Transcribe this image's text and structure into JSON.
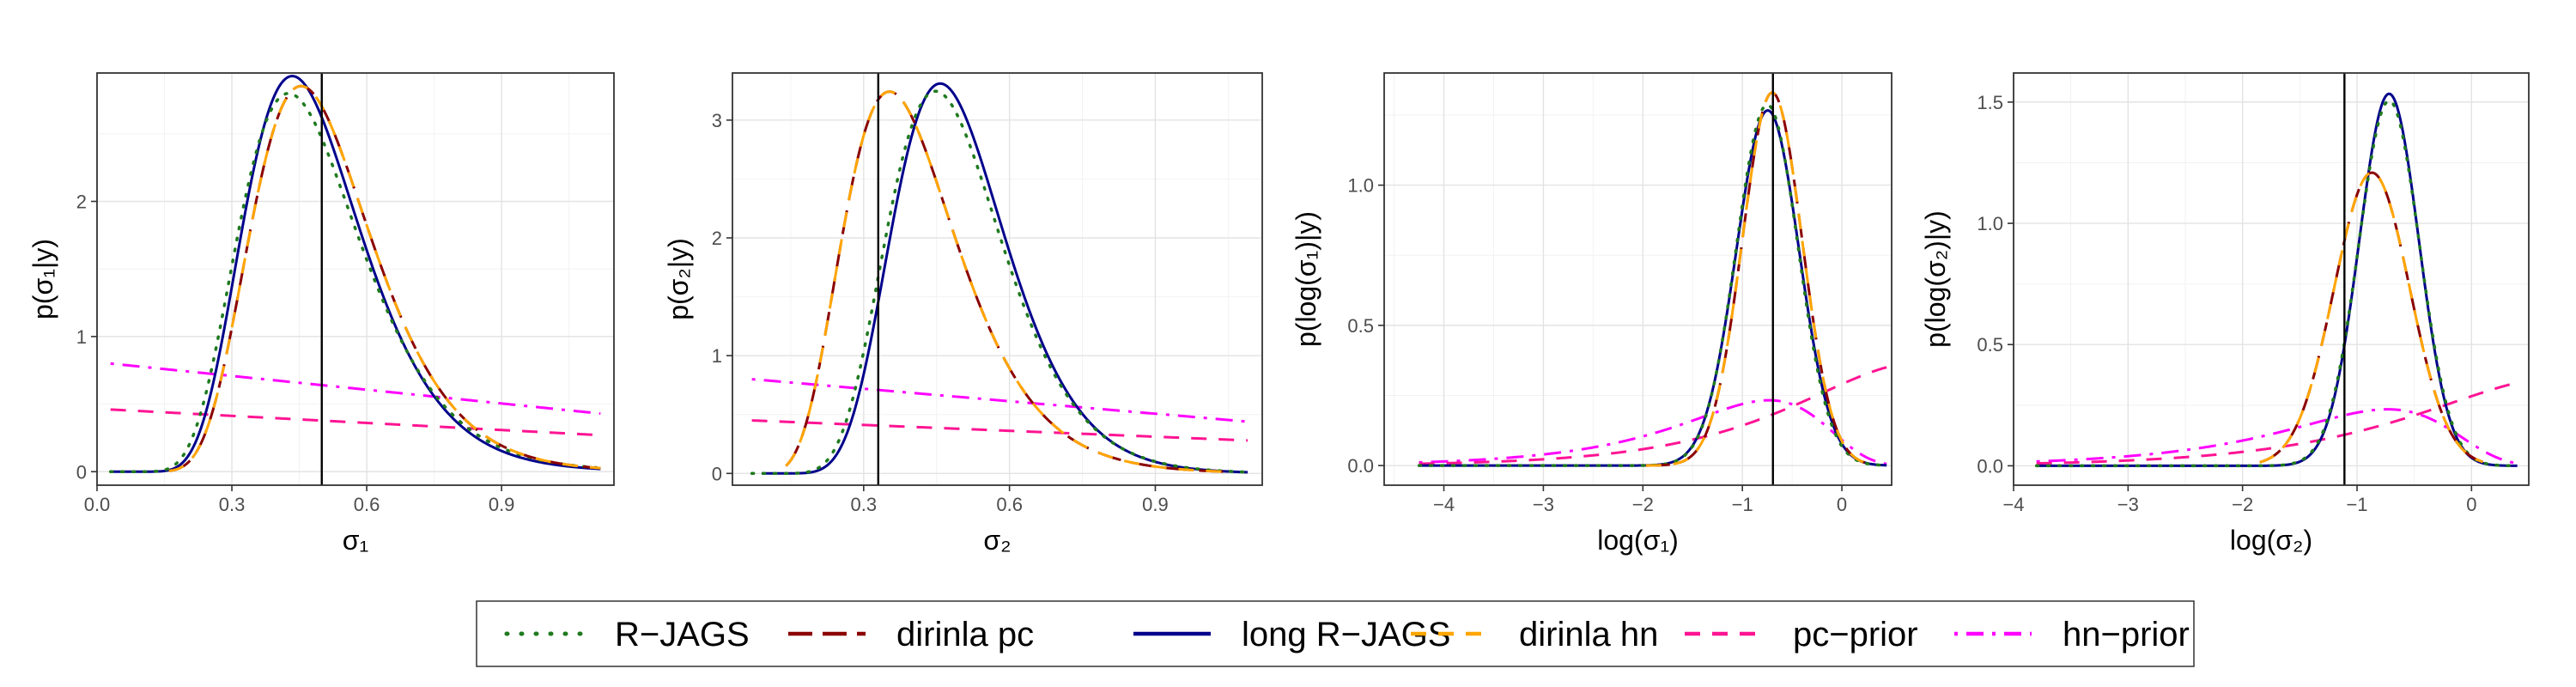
{
  "legend": {
    "items": [
      {
        "label": "R−JAGS",
        "color": "#1f7a1f",
        "dash": "dot"
      },
      {
        "label": "dirinla pc",
        "color": "#8b0000",
        "dash": "longdash"
      },
      {
        "label": "long R−JAGS",
        "color": "#00008b",
        "dash": "solid"
      },
      {
        "label": "dirinla hn",
        "color": "#ffa500",
        "dash": "dash"
      },
      {
        "label": "pc−prior",
        "color": "#ff1493",
        "dash": "dash"
      },
      {
        "label": "hn−prior",
        "color": "#ff00ff",
        "dash": "dotdash"
      }
    ]
  },
  "chart_data": [
    {
      "type": "line",
      "xlabel": "σ₁",
      "ylabel": "p(σ₁|y)",
      "xlim": [
        0.0,
        1.15
      ],
      "ylim": [
        -0.1,
        2.95
      ],
      "xticks": [
        0.0,
        0.3,
        0.6,
        0.9
      ],
      "xtick_labels": [
        "0.0",
        "0.3",
        "0.6",
        "0.9"
      ],
      "yticks": [
        0,
        1,
        2
      ],
      "ytick_labels": [
        "0",
        "1",
        "2"
      ],
      "vline": 0.5,
      "grid": true,
      "series": [
        {
          "name": "R−JAGS",
          "curve": {
            "kind": "lognormal",
            "mu": -0.752,
            "s": 0.318,
            "scale": 1.0,
            "lo": 0.03,
            "hi": 1.12
          }
        },
        {
          "name": "dirinla pc",
          "curve": {
            "kind": "lognormal",
            "mu": -0.703,
            "s": 0.295,
            "scale": 1.0,
            "lo": 0.16,
            "hi": 1.12
          }
        },
        {
          "name": "long R−JAGS",
          "curve": {
            "kind": "lognormal",
            "mu": -0.744,
            "s": 0.3,
            "scale": 1.0,
            "lo": 0.03,
            "hi": 1.12
          }
        },
        {
          "name": "dirinla hn",
          "curve": {
            "kind": "lognormal",
            "mu": -0.703,
            "s": 0.295,
            "scale": 1.0,
            "lo": 0.16,
            "hi": 1.12
          }
        },
        {
          "name": "pc−prior",
          "curve": {
            "kind": "linear",
            "a": 0.46,
            "b": 0.27,
            "lo": 0.03,
            "hi": 1.12
          }
        },
        {
          "name": "hn−prior",
          "curve": {
            "kind": "linear",
            "a": 0.8,
            "b": 0.43,
            "lo": 0.03,
            "hi": 1.12
          }
        }
      ]
    },
    {
      "type": "line",
      "xlabel": "σ₂",
      "ylabel": "p(σ₂|y)",
      "xlim": [
        0.03,
        1.12
      ],
      "ylim": [
        -0.1,
        3.4
      ],
      "xticks": [
        0.3,
        0.6,
        0.9
      ],
      "xtick_labels": [
        "0.3",
        "0.6",
        "0.9"
      ],
      "yticks": [
        0,
        1,
        2,
        3
      ],
      "ytick_labels": [
        "0",
        "1",
        "2",
        "3"
      ],
      "vline": 0.33,
      "grid": true,
      "series": [
        {
          "name": "R−JAGS",
          "curve": {
            "kind": "lognormal",
            "mu": -0.733,
            "s": 0.265,
            "scale": 1.0,
            "lo": 0.07,
            "hi": 1.09
          }
        },
        {
          "name": "dirinla pc",
          "curve": {
            "kind": "lognormal",
            "mu": -0.932,
            "s": 0.33,
            "scale": 1.0,
            "lo": 0.14,
            "hi": 1.05
          }
        },
        {
          "name": "long R−JAGS",
          "curve": {
            "kind": "lognormal",
            "mu": -0.717,
            "s": 0.255,
            "scale": 1.0,
            "lo": 0.09,
            "hi": 1.09
          }
        },
        {
          "name": "dirinla hn",
          "curve": {
            "kind": "lognormal",
            "mu": -0.932,
            "s": 0.33,
            "scale": 1.0,
            "lo": 0.14,
            "hi": 1.05
          }
        },
        {
          "name": "pc−prior",
          "curve": {
            "kind": "linear",
            "a": 0.45,
            "b": 0.28,
            "lo": 0.07,
            "hi": 1.09
          }
        },
        {
          "name": "hn−prior",
          "curve": {
            "kind": "linear",
            "a": 0.8,
            "b": 0.44,
            "lo": 0.07,
            "hi": 1.09
          }
        }
      ]
    },
    {
      "type": "line",
      "xlabel": "log(σ₁)",
      "ylabel": "p(log(σ₁)|y)",
      "xlim": [
        -4.6,
        0.5
      ],
      "ylim": [
        -0.07,
        1.4
      ],
      "xticks": [
        -4,
        -3,
        -2,
        -1,
        0
      ],
      "xtick_labels": [
        "−4",
        "−3",
        "−2",
        "−1",
        "0"
      ],
      "yticks": [
        0.0,
        0.5,
        1.0
      ],
      "ytick_labels": [
        "0.0",
        "0.5",
        "1.0"
      ],
      "vline": -0.693,
      "grid": true,
      "series": [
        {
          "name": "R−JAGS",
          "curve": {
            "kind": "normal",
            "mu": -0.75,
            "s": 0.31,
            "scale": 1.0,
            "lo": -4.25,
            "hi": 0.45
          }
        },
        {
          "name": "dirinla pc",
          "curve": {
            "kind": "normal",
            "mu": -0.7,
            "s": 0.3,
            "scale": 1.0,
            "lo": -1.97,
            "hi": 0.25
          }
        },
        {
          "name": "long R−JAGS",
          "curve": {
            "kind": "normal",
            "mu": -0.745,
            "s": 0.315,
            "scale": 1.0,
            "lo": -4.25,
            "hi": 0.45
          }
        },
        {
          "name": "dirinla hn",
          "curve": {
            "kind": "normal",
            "mu": -0.7,
            "s": 0.3,
            "scale": 1.0,
            "lo": -1.97,
            "hi": 0.25
          }
        },
        {
          "name": "pc−prior",
          "curve": {
            "kind": "pcprior",
            "lam": 0.46,
            "lo": -4.25,
            "hi": 0.45
          }
        },
        {
          "name": "hn−prior",
          "curve": {
            "kind": "hnprior",
            "k": 0.48,
            "c": 0.8,
            "lo": -4.25,
            "hi": 0.45
          }
        }
      ]
    },
    {
      "type": "line",
      "xlabel": "log(σ₂)",
      "ylabel": "p(log(σ₂)|y)",
      "xlim": [
        -4.0,
        0.5
      ],
      "ylim": [
        -0.08,
        1.62
      ],
      "xticks": [
        -4,
        -3,
        -2,
        -1,
        0
      ],
      "xtick_labels": [
        "−4",
        "−3",
        "−2",
        "−1",
        "0"
      ],
      "yticks": [
        0.0,
        0.5,
        1.0,
        1.5
      ],
      "ytick_labels": [
        "0.0",
        "0.5",
        "1.0",
        "1.5"
      ],
      "vline": -1.11,
      "grid": true,
      "series": [
        {
          "name": "R−JAGS",
          "curve": {
            "kind": "normal",
            "mu": -0.72,
            "s": 0.265,
            "scale": 1.0,
            "lo": -3.8,
            "hi": 0.4
          }
        },
        {
          "name": "dirinla pc",
          "curve": {
            "kind": "normal",
            "mu": -0.87,
            "s": 0.33,
            "scale": 1.0,
            "lo": -1.85,
            "hi": 0.1
          }
        },
        {
          "name": "long R−JAGS",
          "curve": {
            "kind": "normal",
            "mu": -0.72,
            "s": 0.26,
            "scale": 1.0,
            "lo": -3.8,
            "hi": 0.4
          }
        },
        {
          "name": "dirinla hn",
          "curve": {
            "kind": "normal",
            "mu": -0.87,
            "s": 0.33,
            "scale": 1.0,
            "lo": -1.85,
            "hi": 0.1
          }
        },
        {
          "name": "pc−prior",
          "curve": {
            "kind": "pcprior",
            "lam": 0.45,
            "lo": -3.8,
            "hi": 0.4
          }
        },
        {
          "name": "hn−prior",
          "curve": {
            "kind": "hnprior",
            "k": 0.48,
            "c": 0.8,
            "lo": -3.8,
            "hi": 0.4
          }
        }
      ]
    }
  ]
}
